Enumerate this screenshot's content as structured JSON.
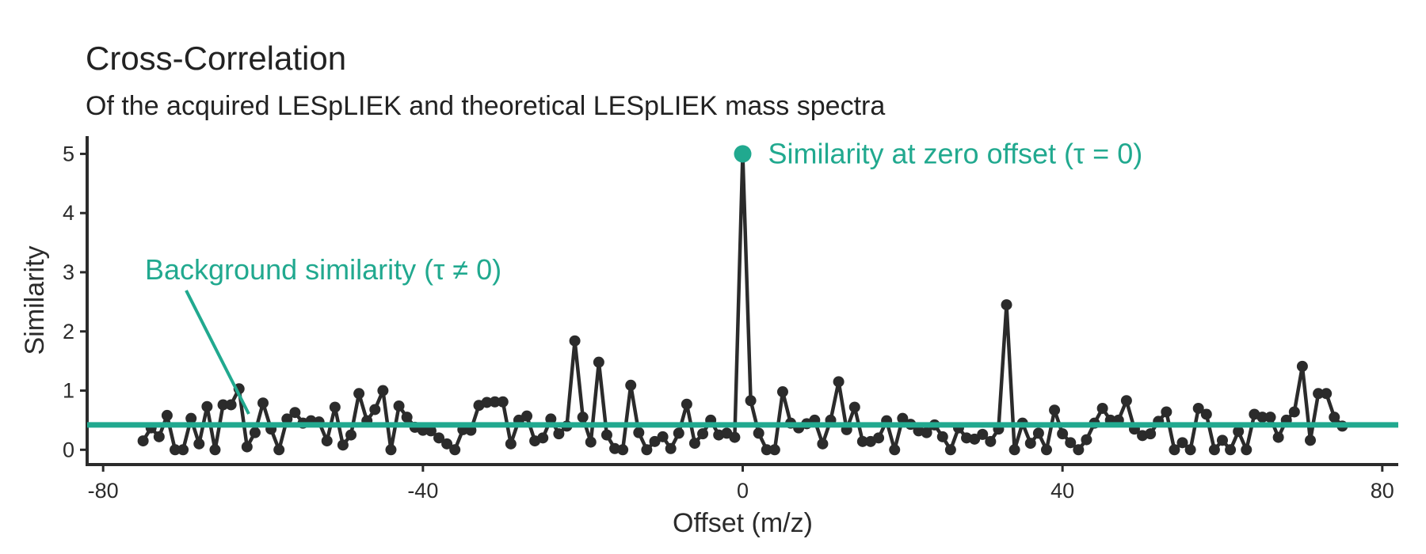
{
  "chart_data": {
    "type": "line",
    "title": "Cross-Correlation",
    "subtitle": "Of the acquired LESpLIEK and theoretical LESpLIEK mass spectra",
    "xlabel": "Offset (m/z)",
    "ylabel": "Similarity",
    "xlim": [
      -82,
      82
    ],
    "ylim": [
      -0.25,
      5.3
    ],
    "xticks": [
      -80,
      -40,
      40,
      80
    ],
    "xtick_labels": [
      "-80",
      "-40",
      "0",
      "40",
      "80"
    ],
    "xtick_values": [
      -80,
      -40,
      0,
      40,
      80
    ],
    "yticks": [
      0,
      1,
      2,
      3,
      4,
      5
    ],
    "ytick_labels": [
      "0",
      "1",
      "2",
      "3",
      "4",
      "5"
    ],
    "grid": false,
    "series": [
      {
        "x": [
          -75,
          -74,
          -73,
          -72,
          -71,
          -70,
          -69,
          -68,
          -67,
          -66,
          -65,
          -64,
          -63,
          -62,
          -61,
          -60,
          -59,
          -58,
          -57,
          -56,
          -55,
          -54,
          -53,
          -52,
          -51,
          -50,
          -49,
          -48,
          -47,
          -46,
          -45,
          -44,
          -43,
          -42,
          -41,
          -40,
          -39,
          -38,
          -37,
          -36,
          -35,
          -34,
          -33,
          -32,
          -31,
          -30,
          -29,
          -28,
          -27,
          -26,
          -25,
          -24,
          -23,
          -22,
          -21,
          -20,
          -19,
          -18,
          -17,
          -16,
          -15,
          -14,
          -13,
          -12,
          -11,
          -10,
          -9,
          -8,
          -7,
          -6,
          -5,
          -4,
          -3,
          -2,
          -1,
          0,
          1,
          2,
          3,
          4,
          5,
          6,
          7,
          8,
          9,
          10,
          11,
          12,
          13,
          14,
          15,
          16,
          17,
          18,
          19,
          20,
          21,
          22,
          23,
          24,
          25,
          26,
          27,
          28,
          29,
          30,
          31,
          32,
          33,
          34,
          35,
          36,
          37,
          38,
          39,
          40,
          41,
          42,
          43,
          44,
          45,
          46,
          47,
          48,
          49,
          50,
          51,
          52,
          53,
          54,
          55,
          56,
          57,
          58,
          59,
          60,
          61,
          62,
          63,
          64,
          65,
          66,
          67,
          68,
          69,
          70,
          71,
          72,
          73,
          74,
          75
        ],
        "y": [
          0.15,
          0.37,
          0.22,
          0.58,
          0.0,
          0.0,
          0.53,
          0.1,
          0.73,
          0.0,
          0.76,
          0.76,
          1.03,
          0.05,
          0.29,
          0.79,
          0.35,
          0.0,
          0.52,
          0.63,
          0.45,
          0.49,
          0.47,
          0.15,
          0.72,
          0.08,
          0.25,
          0.95,
          0.49,
          0.68,
          1.0,
          0.0,
          0.74,
          0.55,
          0.38,
          0.33,
          0.32,
          0.2,
          0.1,
          0.0,
          0.34,
          0.33,
          0.75,
          0.8,
          0.81,
          0.81,
          0.1,
          0.5,
          0.57,
          0.15,
          0.2,
          0.52,
          0.27,
          0.4,
          1.84,
          0.55,
          0.13,
          1.48,
          0.25,
          0.02,
          0.0,
          1.09,
          0.29,
          0.0,
          0.14,
          0.22,
          0.02,
          0.28,
          0.77,
          0.11,
          0.27,
          0.5,
          0.25,
          0.28,
          0.21,
          5.0,
          0.83,
          0.28,
          0.0,
          0.0,
          0.98,
          0.45,
          0.37,
          0.44,
          0.5,
          0.1,
          0.5,
          1.15,
          0.34,
          0.72,
          0.14,
          0.14,
          0.2,
          0.49,
          0.0,
          0.53,
          0.43,
          0.32,
          0.29,
          0.42,
          0.22,
          0.0,
          0.37,
          0.2,
          0.18,
          0.26,
          0.14,
          0.35,
          2.45,
          0.0,
          0.45,
          0.11,
          0.28,
          0.0,
          0.67,
          0.27,
          0.12,
          0.0,
          0.17,
          0.45,
          0.7,
          0.5,
          0.5,
          0.83,
          0.35,
          0.24,
          0.27,
          0.48,
          0.64,
          0.0,
          0.12,
          0.0,
          0.7,
          0.6,
          0.0,
          0.16,
          0.0,
          0.31,
          0.0,
          0.6,
          0.55,
          0.55,
          0.21,
          0.5,
          0.64,
          1.41,
          0.16,
          0.95,
          0.95,
          0.55,
          0.4
        ]
      }
    ],
    "background_level": 0.42,
    "annotations": [
      {
        "label": "Background similarity (τ ≠ 0)"
      },
      {
        "label": "Similarity at zero offset (τ = 0)",
        "point_x": 0,
        "point_y": 5.0
      }
    ],
    "colors": {
      "line": "#2b2b2b",
      "accent": "#21a98f",
      "axis": "#2b2b2b",
      "text": "#222222"
    }
  }
}
